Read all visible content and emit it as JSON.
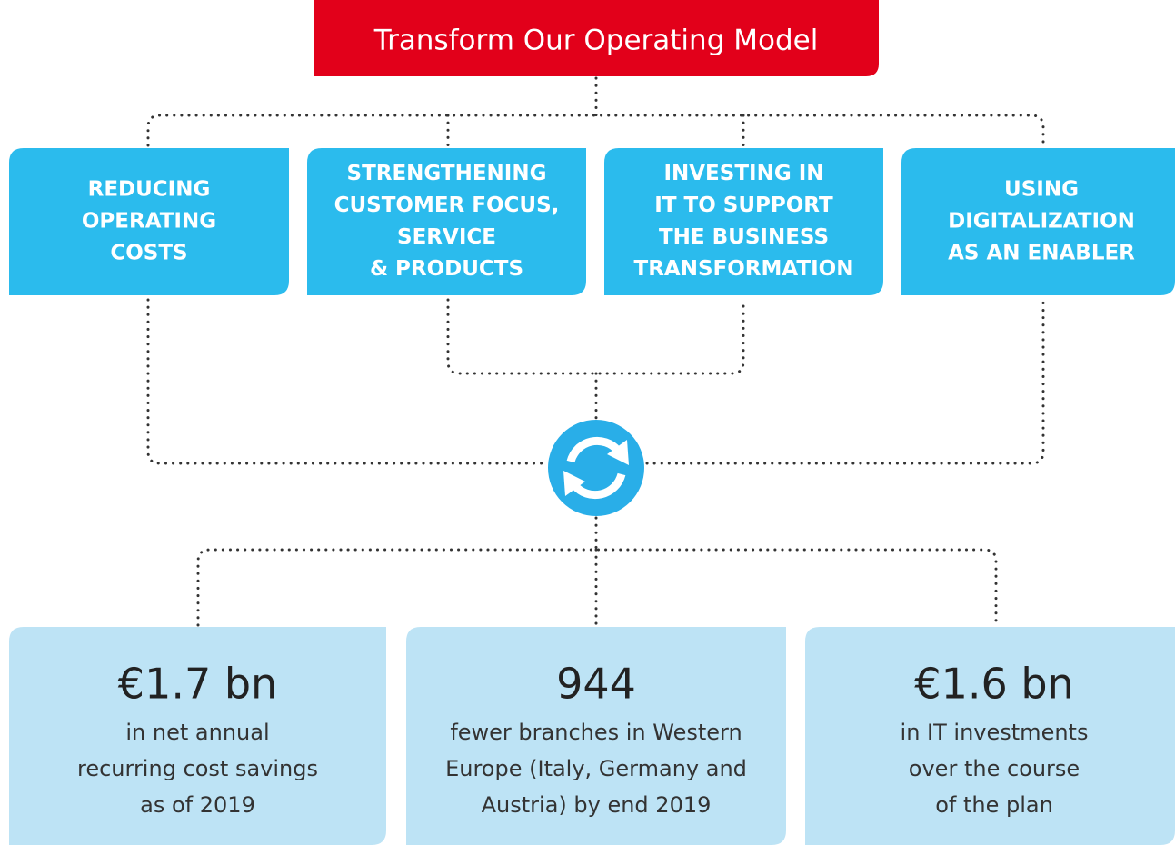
{
  "title": "Transform Our Operating Model",
  "pillars": [
    {
      "lines": [
        "REDUCING",
        "OPERATING",
        "COSTS"
      ]
    },
    {
      "lines": [
        "STRENGTHENING",
        "CUSTOMER FOCUS,",
        "SERVICE",
        "& PRODUCTS"
      ]
    },
    {
      "lines": [
        "INVESTING IN",
        "IT TO SUPPORT",
        "THE BUSINESS",
        "TRANSFORMATION"
      ]
    },
    {
      "lines": [
        "USING",
        "DIGITALIZATION",
        "AS AN ENABLER"
      ]
    }
  ],
  "results": [
    {
      "value": "€1.7 bn",
      "lines": [
        "in net annual",
        "recurring cost savings",
        "as of 2019"
      ]
    },
    {
      "value": "944",
      "lines": [
        "fewer branches in Western",
        "Europe (Italy, Germany and",
        "Austria) by end 2019"
      ]
    },
    {
      "value": "€1.6 bn",
      "lines": [
        "in IT investments",
        "over the course",
        "of the plan"
      ]
    }
  ]
}
